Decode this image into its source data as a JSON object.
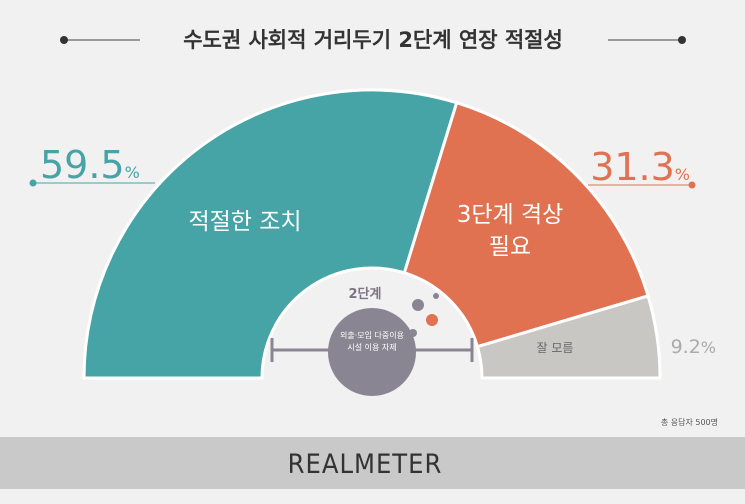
{
  "chart_data": {
    "type": "half-donut",
    "title": "수도권 사회적 거리두기 2단계 연장 적절성",
    "categories": [
      "적절한 조치",
      "3단계 격상 필요",
      "잘 모름"
    ],
    "values": [
      59.5,
      31.3,
      9.2
    ],
    "value_labels": [
      "59.5%",
      "31.3%",
      "9.2%"
    ],
    "colors": [
      "#46a4a6",
      "#e07252",
      "#c9c7c4"
    ],
    "center_label": "2단계",
    "center_note": "외출·모임 다중이용시설 이용 자제",
    "note": "총 응답자 500명",
    "brand": "REALMETER"
  }
}
